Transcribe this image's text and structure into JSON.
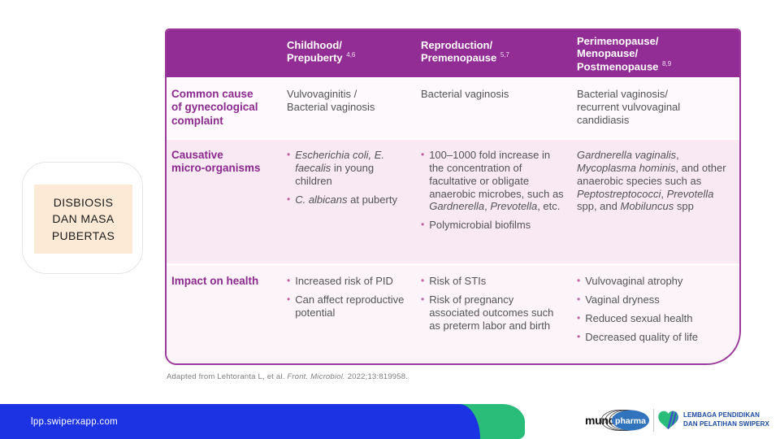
{
  "slide": {
    "side_label": "DISBIOSIS\nDAN MASA\nPUBERTAS",
    "citation": [
      {
        "t": "Adapted from Lehtoranta L, et al. "
      },
      {
        "t": "Front. Microbiol.",
        "i": true
      },
      {
        "t": " 2022;13:819958."
      }
    ]
  },
  "table": {
    "headers": [
      {
        "text": "",
        "sup": ""
      },
      {
        "text": "Childhood/\nPrepuberty ",
        "sup": "4,6"
      },
      {
        "text": "Reproduction/\nPremenopause ",
        "sup": "5,7"
      },
      {
        "text": "Perimenopause/\nMenopause/\nPostmenopause ",
        "sup": "8,9"
      }
    ],
    "rows": [
      {
        "label": "Common cause\nof gynecological\ncomplaint",
        "cells": [
          {
            "type": "text",
            "runs": [
              {
                "t": "Vulvovaginitis /\nBacterial vaginosis"
              }
            ]
          },
          {
            "type": "text",
            "runs": [
              {
                "t": "Bacterial vaginosis"
              }
            ]
          },
          {
            "type": "text",
            "runs": [
              {
                "t": "Bacterial vaginosis/\nrecurrent vulvovaginal\ncandidiasis"
              }
            ]
          }
        ]
      },
      {
        "label": "Causative\nmicro-organisms",
        "cells": [
          {
            "type": "bullets",
            "items": [
              [
                {
                  "t": "Escherichia coli, E. faecalis",
                  "i": true
                },
                {
                  "t": " in young children"
                }
              ],
              [
                {
                  "t": "C. albicans",
                  "i": true
                },
                {
                  "t": " at puberty"
                }
              ]
            ]
          },
          {
            "type": "bullets",
            "items": [
              [
                {
                  "t": "100–1000 fold increase in the concentration of facultative or obligate anaerobic microbes, such as "
                },
                {
                  "t": "Gardnerella",
                  "i": true
                },
                {
                  "t": ", "
                },
                {
                  "t": "Prevotella",
                  "i": true
                },
                {
                  "t": ", etc."
                }
              ],
              [
                {
                  "t": "Polymicrobial biofilms"
                }
              ]
            ]
          },
          {
            "type": "text",
            "runs": [
              {
                "t": "Gardnerella vaginalis",
                "i": true
              },
              {
                "t": ", "
              },
              {
                "t": "Mycoplasma hominis",
                "i": true
              },
              {
                "t": ", and other anaerobic species such as "
              },
              {
                "t": "Peptostreptococci",
                "i": true
              },
              {
                "t": ", "
              },
              {
                "t": "Prevotella",
                "i": true
              },
              {
                "t": " spp, and "
              },
              {
                "t": "Mobiluncus",
                "i": true
              },
              {
                "t": " spp"
              }
            ]
          }
        ]
      },
      {
        "label": "Impact on health",
        "cells": [
          {
            "type": "bullets",
            "items": [
              [
                {
                  "t": "Increased risk of PID"
                }
              ],
              [
                {
                  "t": "Can affect reproductive potential"
                }
              ]
            ]
          },
          {
            "type": "bullets",
            "items": [
              [
                {
                  "t": "Risk of STIs"
                }
              ],
              [
                {
                  "t": "Risk of pregnancy associated outcomes such as preterm labor and birth"
                }
              ]
            ]
          },
          {
            "type": "bullets",
            "items": [
              [
                {
                  "t": "Vulvovaginal atrophy"
                }
              ],
              [
                {
                  "t": "Vaginal dryness"
                }
              ],
              [
                {
                  "t": "Reduced sexual health"
                }
              ],
              [
                {
                  "t": "Decreased quality of life"
                }
              ]
            ]
          }
        ]
      }
    ]
  },
  "footer": {
    "url": "lpp.swiperxapp.com",
    "mundipharma": {
      "part1": "mundi",
      "part2": "pharma"
    },
    "lpp": {
      "line1": "LEMBAGA PENDIDIKAN",
      "line2": "DAN PELATIHAN SWIPERX"
    }
  },
  "colors": {
    "purple-header": "#932d96",
    "purple-border": "#9c3a9c",
    "purple-label": "#8c2a8f",
    "pink-bullet": "#c160a0",
    "text-body": "#545456",
    "row1-bg": "#fdf9fc",
    "row2-bg": "#f8e9f3",
    "row3-bg": "#fcf4f9",
    "citation-gray": "#7f7f7f",
    "peach": "#fce9d6",
    "blue-bar": "#1b33e2",
    "green": "#2abd79",
    "mundi-blue": "#3273bd",
    "lpp-blue": "#1b4aa2",
    "stripe-blue": "#3b55c8"
  }
}
